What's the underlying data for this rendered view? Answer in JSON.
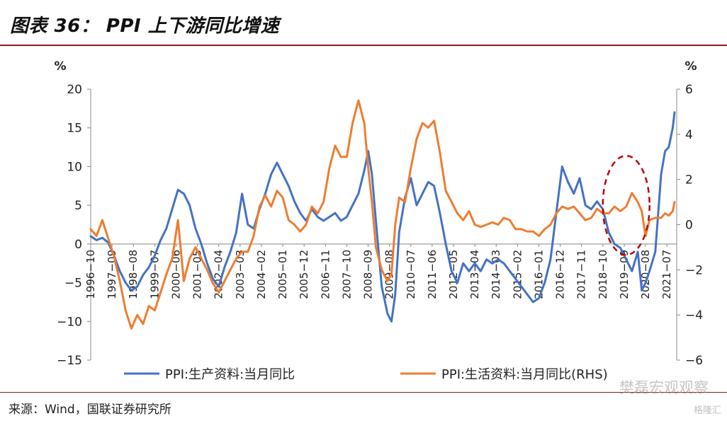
{
  "header": {
    "title": "图表 36：  PPI 上下游同比增速"
  },
  "footer": {
    "source": "来源：Wind，国联证券研究所",
    "watermark": "樊磊宏观观察",
    "watermark2": "格隆汇"
  },
  "chart_data": {
    "type": "line",
    "left_unit": "%",
    "right_unit": "%",
    "ylim_left": [
      -15,
      20
    ],
    "ylim_right": [
      -6,
      6
    ],
    "yticks_left": [
      "20",
      "15",
      "10",
      "5",
      "0",
      "−5",
      "−10",
      "−15"
    ],
    "yticks_right": [
      "6",
      "4",
      "2",
      "0",
      "−2",
      "−4",
      "−6"
    ],
    "x_tick_labels": [
      "1996−10",
      "1997−09",
      "1998−08",
      "1999−07",
      "2000−06",
      "2001−05",
      "2002−04",
      "2003−03",
      "2004−02",
      "2005−01",
      "2005−12",
      "2006−11",
      "2007−10",
      "2008−09",
      "2009−08",
      "2010−07",
      "2011−06",
      "2012−05",
      "2013−04",
      "2014−03",
      "2015−02",
      "2016−01",
      "2016−12",
      "2017−11",
      "2018−10",
      "2019−09",
      "2020−08",
      "2021−07"
    ],
    "grid": false,
    "legend_position": "bottom",
    "annotation": "red dashed ellipse around 2019−2020",
    "colors": {
      "producer": "#4472c4",
      "consumer": "#ed7d31",
      "annotation": "#c00000"
    },
    "series": [
      {
        "name": "PPI:生产资料:当月同比",
        "axis": "left",
        "x": [
          1996.75,
          1997.0,
          1997.25,
          1997.5,
          1997.75,
          1998.0,
          1998.25,
          1998.5,
          1998.75,
          1999.0,
          1999.25,
          1999.5,
          1999.75,
          2000.0,
          2000.25,
          2000.5,
          2000.75,
          2001.0,
          2001.25,
          2001.5,
          2001.75,
          2002.0,
          2002.25,
          2002.5,
          2002.75,
          2003.0,
          2003.25,
          2003.5,
          2003.75,
          2004.0,
          2004.25,
          2004.5,
          2004.75,
          2005.0,
          2005.25,
          2005.5,
          2005.75,
          2006.0,
          2006.25,
          2006.5,
          2006.75,
          2007.0,
          2007.25,
          2007.5,
          2007.75,
          2008.0,
          2008.25,
          2008.5,
          2008.67,
          2008.83,
          2009.0,
          2009.25,
          2009.5,
          2009.67,
          2009.83,
          2010.0,
          2010.25,
          2010.5,
          2010.75,
          2011.0,
          2011.25,
          2011.5,
          2011.75,
          2012.0,
          2012.25,
          2012.5,
          2012.75,
          2013.0,
          2013.25,
          2013.5,
          2013.75,
          2014.0,
          2014.25,
          2014.5,
          2014.75,
          2015.0,
          2015.25,
          2015.5,
          2015.75,
          2016.0,
          2016.25,
          2016.5,
          2016.75,
          2017.0,
          2017.25,
          2017.5,
          2017.75,
          2018.0,
          2018.25,
          2018.5,
          2018.75,
          2019.0,
          2019.25,
          2019.5,
          2019.75,
          2020.0,
          2020.25,
          2020.42,
          2020.58,
          2020.75,
          2021.0,
          2021.25,
          2021.42,
          2021.58,
          2021.75,
          2021.83
        ],
        "y": [
          1.0,
          0.5,
          0.8,
          0.2,
          -1.5,
          -3.5,
          -5.0,
          -6.0,
          -5.5,
          -4.0,
          -3.0,
          -1.5,
          0.5,
          2.0,
          4.5,
          7.0,
          6.5,
          5.0,
          2.0,
          0.0,
          -2.5,
          -4.5,
          -5.5,
          -3.0,
          -1.0,
          1.5,
          6.5,
          2.5,
          2.0,
          4.5,
          6.5,
          9.0,
          10.5,
          9.0,
          7.5,
          5.5,
          4.0,
          3.0,
          4.5,
          3.5,
          3.0,
          3.5,
          4.0,
          3.0,
          3.5,
          5.0,
          6.5,
          9.5,
          12.0,
          9.0,
          3.0,
          -5.5,
          -9.0,
          -10.0,
          -6.5,
          1.5,
          6.0,
          8.5,
          5.0,
          6.5,
          8.0,
          7.5,
          4.0,
          0.0,
          -3.5,
          -5.0,
          -2.5,
          -3.5,
          -2.5,
          -3.5,
          -2.0,
          -2.5,
          -2.0,
          -2.5,
          -3.5,
          -4.5,
          -5.5,
          -6.5,
          -7.5,
          -7.0,
          -5.0,
          -2.0,
          4.0,
          10.0,
          8.0,
          6.5,
          8.5,
          5.0,
          4.5,
          5.5,
          4.5,
          1.5,
          0.0,
          -0.5,
          -2.0,
          -3.5,
          -1.0,
          -6.0,
          -5.0,
          -3.5,
          -1.0,
          9.0,
          12.0,
          12.5,
          15.0,
          17.0
        ]
      },
      {
        "name": "PPI:生活资料:当月同比(RHS)",
        "axis": "right",
        "x": [
          1996.75,
          1997.0,
          1997.25,
          1997.5,
          1997.75,
          1998.0,
          1998.25,
          1998.5,
          1998.75,
          1999.0,
          1999.25,
          1999.5,
          1999.75,
          2000.0,
          2000.25,
          2000.5,
          2000.75,
          2001.0,
          2001.25,
          2001.5,
          2001.75,
          2002.0,
          2002.25,
          2002.5,
          2002.75,
          2003.0,
          2003.25,
          2003.5,
          2003.75,
          2004.0,
          2004.25,
          2004.5,
          2004.75,
          2005.0,
          2005.25,
          2005.5,
          2005.75,
          2006.0,
          2006.25,
          2006.5,
          2006.75,
          2007.0,
          2007.25,
          2007.5,
          2007.75,
          2008.0,
          2008.25,
          2008.5,
          2008.67,
          2008.83,
          2009.0,
          2009.25,
          2009.5,
          2009.67,
          2009.83,
          2010.0,
          2010.25,
          2010.5,
          2010.75,
          2011.0,
          2011.25,
          2011.5,
          2011.75,
          2012.0,
          2012.25,
          2012.5,
          2012.75,
          2013.0,
          2013.25,
          2013.5,
          2013.75,
          2014.0,
          2014.25,
          2014.5,
          2014.75,
          2015.0,
          2015.25,
          2015.5,
          2015.75,
          2016.0,
          2016.25,
          2016.5,
          2016.75,
          2017.0,
          2017.25,
          2017.5,
          2017.75,
          2018.0,
          2018.25,
          2018.5,
          2018.75,
          2019.0,
          2019.25,
          2019.5,
          2019.75,
          2020.0,
          2020.25,
          2020.42,
          2020.58,
          2020.75,
          2021.0,
          2021.25,
          2021.42,
          2021.58,
          2021.75,
          2021.83
        ],
        "y": [
          -0.2,
          -0.5,
          0.2,
          -0.6,
          -1.4,
          -2.5,
          -3.8,
          -4.6,
          -4.0,
          -4.4,
          -3.6,
          -3.8,
          -3.0,
          -2.2,
          -1.5,
          0.2,
          -2.5,
          -1.5,
          -1.0,
          -1.5,
          -2.0,
          -2.6,
          -3.0,
          -2.5,
          -2.0,
          -1.5,
          -1.2,
          -1.2,
          -0.5,
          0.8,
          1.3,
          0.8,
          1.5,
          1.2,
          0.2,
          0.0,
          -0.3,
          0.0,
          0.8,
          0.5,
          1.0,
          2.5,
          3.5,
          3.0,
          3.0,
          4.5,
          5.5,
          4.5,
          2.5,
          1.0,
          -1.0,
          -2.0,
          -2.5,
          -2.2,
          0.0,
          1.2,
          1.0,
          2.5,
          3.8,
          4.5,
          4.3,
          4.6,
          3.2,
          1.5,
          1.0,
          0.5,
          0.2,
          0.6,
          0.0,
          -0.1,
          0.0,
          0.1,
          0.0,
          0.3,
          0.2,
          -0.2,
          -0.2,
          -0.3,
          -0.3,
          -0.5,
          -0.2,
          0.0,
          0.5,
          0.8,
          0.7,
          0.8,
          0.5,
          0.2,
          0.3,
          0.7,
          0.5,
          0.5,
          0.8,
          0.6,
          0.8,
          1.4,
          1.0,
          0.6,
          -0.5,
          0.2,
          0.3,
          0.3,
          0.5,
          0.4,
          0.6,
          1.0
        ]
      }
    ]
  }
}
